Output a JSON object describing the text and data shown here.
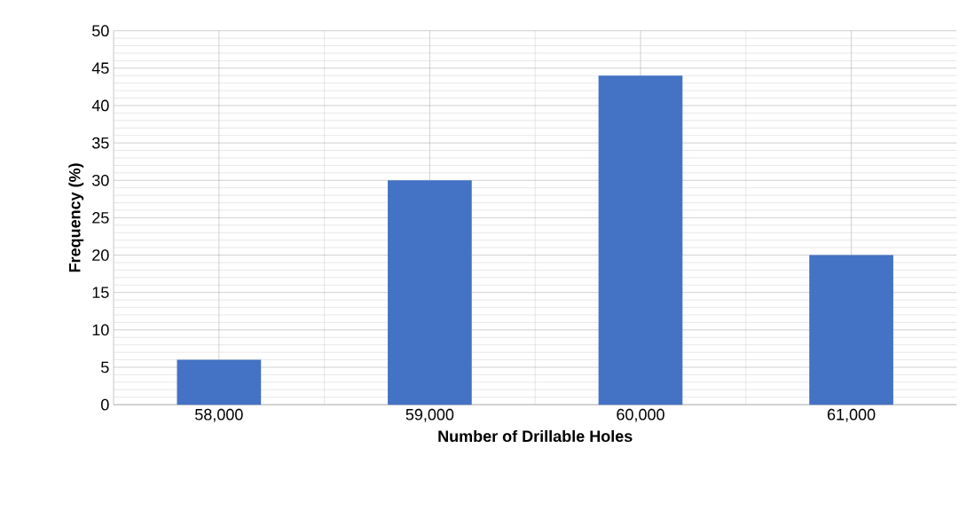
{
  "chart_data": {
    "type": "bar",
    "xlabel": "Number of Drillable Holes",
    "ylabel": "Frequency (%)",
    "categories": [
      "58,000",
      "59,000",
      "60,000",
      "61,000"
    ],
    "values": [
      6,
      30,
      44,
      20
    ],
    "color": "#4472c4",
    "ylim": [
      0,
      50
    ],
    "yticks": [
      0,
      5,
      10,
      15,
      20,
      25,
      30,
      35,
      40,
      45,
      50
    ],
    "grid": true
  }
}
